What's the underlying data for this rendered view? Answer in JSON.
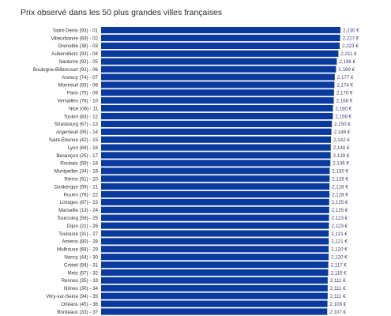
{
  "header": {
    "title": "Prix observé dans les 50 plus grandes villes françaises"
  },
  "chart_data": {
    "type": "bar",
    "orientation": "horizontal",
    "title": "Prix observé dans les 50 plus grandes villes françaises",
    "colors": {
      "bar": "#0a3a9e",
      "bar_highlight": "#1c8fe0"
    },
    "categories": [
      "Saint-Denis (93) - 01",
      "Villeurbanne (69) - 02",
      "Grenoble (38) - 03",
      "Aubervilliers (93) - 04",
      "Nanterre (92) - 05",
      "Boulogne-Billancourt (92) - 06",
      "Annecy (74) - 07",
      "Montreuil (93) - 08",
      "Paris (75) - 09",
      "Versailles (78) - 10",
      "Nice (06) - 11",
      "Toulon (83) - 12",
      "Strasbourg (67) - 13",
      "Argenteuil (95) - 14",
      "Saint-Étienne (42) - 15",
      "Lyon (69) - 16",
      "Besançon (25) - 17",
      "Roubaix (59) - 18",
      "Montpellier (34) - 19",
      "Reims (51) - 20",
      "Dunkerque (59) - 21",
      "Rouen (76) - 22",
      "Limoges (87) - 23",
      "Marseille (13) - 24",
      "Tourcoing (59) - 25",
      "Dijon (21) - 26",
      "Toulouse (31) - 27",
      "Amiens (80) - 28",
      "Mulhouse (68) - 29",
      "Nancy (44) - 30",
      "Créteil (94) - 31",
      "Metz (57) - 32",
      "Rennes (35) - 33",
      "Nîmes (30) - 34",
      "Vitry-sur-Seine (94) - 35",
      "Orléans (45) - 36",
      "Bordeaux (33) - 37"
    ],
    "values": [
      2.23,
      2.227,
      2.223,
      2.211,
      2.196,
      2.189,
      2.177,
      2.174,
      2.17,
      2.168,
      2.16,
      2.159,
      2.15,
      2.146,
      2.142,
      2.14,
      2.139,
      2.136,
      2.13,
      2.129,
      2.128,
      2.128,
      2.125,
      2.125,
      2.123,
      2.123,
      2.121,
      2.121,
      2.12,
      2.12,
      2.117,
      2.116,
      2.111,
      2.111,
      2.111,
      2.109,
      2.107
    ],
    "value_labels": [
      "2,230 €",
      "2,227 €",
      "2,223 €",
      "2,211 €",
      "2,196 €",
      "2,189 €",
      "2,177 €",
      "2,174 €",
      "2,170 €",
      "2,168 €",
      "2,160 €",
      "2,159 €",
      "2,150 €",
      "2,146 €",
      "2,142 €",
      "2,140 €",
      "2,139 €",
      "2,136 €",
      "2,130 €",
      "2,129 €",
      "2,128 €",
      "2,128 €",
      "2,125 €",
      "2,125 €",
      "2,123 €",
      "2,123 €",
      "2,121 €",
      "2,121 €",
      "2,120 €",
      "2,120 €",
      "2,117 €",
      "2,116 €",
      "2,111 €",
      "2,111 €",
      "2,111 €",
      "2,109 €",
      "2,107 €"
    ],
    "x_unit": "€",
    "grid": false,
    "legend": "none"
  }
}
